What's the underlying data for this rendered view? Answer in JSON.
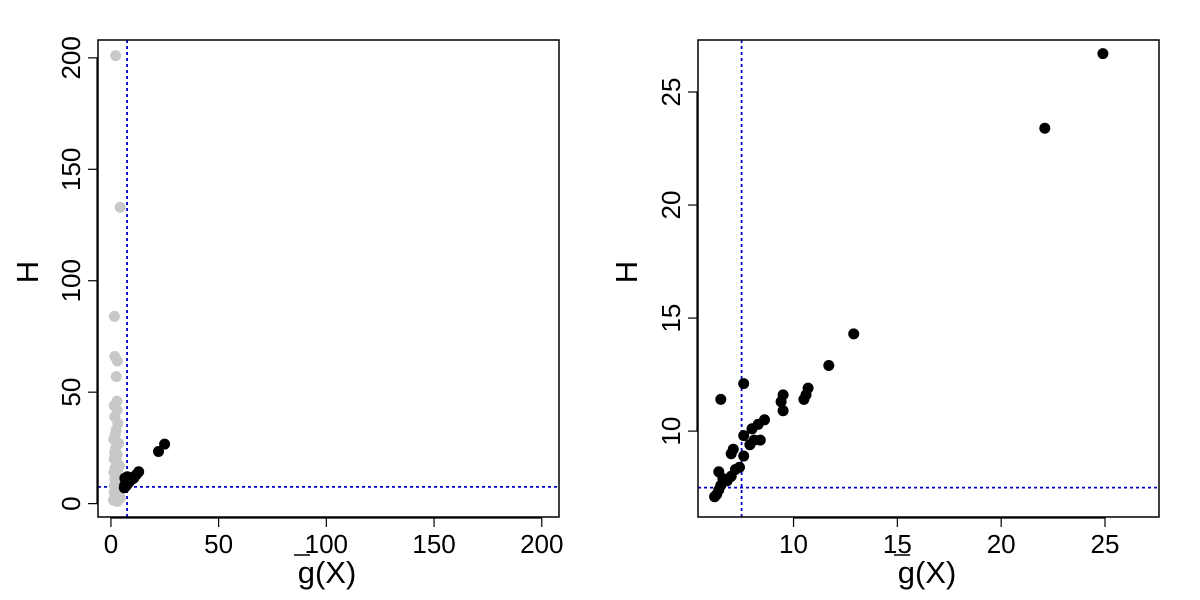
{
  "chart_data": [
    {
      "type": "scatter",
      "xlabel": "g(X)",
      "ylabel": "H",
      "xlim": [
        -6,
        208
      ],
      "ylim": [
        -6,
        208
      ],
      "xticks": [
        0,
        50,
        100,
        150,
        200
      ],
      "yticks": [
        0,
        50,
        100,
        150,
        200
      ],
      "reference_lines": {
        "x": 7.5,
        "y": 7.5,
        "color": "#0000cc",
        "style": "dotted"
      },
      "series": [
        {
          "color": "#c8c8c8",
          "points": [
            {
              "x": 2.2,
              "y": 201
            },
            {
              "x": 4.3,
              "y": 133
            },
            {
              "x": 1.6,
              "y": 84
            },
            {
              "x": 1.8,
              "y": 66
            },
            {
              "x": 3.0,
              "y": 64
            },
            {
              "x": 2.5,
              "y": 57
            },
            {
              "x": 2.8,
              "y": 46
            },
            {
              "x": 1.5,
              "y": 44
            },
            {
              "x": 2.9,
              "y": 42
            },
            {
              "x": 1.8,
              "y": 39
            },
            {
              "x": 3.2,
              "y": 36
            },
            {
              "x": 2.4,
              "y": 33
            },
            {
              "x": 2.1,
              "y": 31
            },
            {
              "x": 1.3,
              "y": 29
            },
            {
              "x": 3.6,
              "y": 27
            },
            {
              "x": 2.2,
              "y": 25
            },
            {
              "x": 1.7,
              "y": 23
            },
            {
              "x": 2.9,
              "y": 22
            },
            {
              "x": 1.5,
              "y": 20
            },
            {
              "x": 2.6,
              "y": 19
            },
            {
              "x": 3.9,
              "y": 17
            },
            {
              "x": 1.9,
              "y": 16
            },
            {
              "x": 3.1,
              "y": 15
            },
            {
              "x": 1.4,
              "y": 14
            },
            {
              "x": 2.4,
              "y": 13
            },
            {
              "x": 3.5,
              "y": 12
            },
            {
              "x": 1.8,
              "y": 11
            },
            {
              "x": 2.9,
              "y": 10
            },
            {
              "x": 4.2,
              "y": 9
            },
            {
              "x": 1.6,
              "y": 8
            },
            {
              "x": 2.6,
              "y": 7
            },
            {
              "x": 3.3,
              "y": 6
            },
            {
              "x": 1.5,
              "y": 5
            },
            {
              "x": 2.3,
              "y": 4
            },
            {
              "x": 3.6,
              "y": 3.5
            },
            {
              "x": 1.9,
              "y": 3
            },
            {
              "x": 2.7,
              "y": 2
            },
            {
              "x": 4.4,
              "y": 2.5
            },
            {
              "x": 1.2,
              "y": 1.5
            },
            {
              "x": 3.0,
              "y": 1
            }
          ]
        },
        {
          "color": "#000000",
          "points": [
            {
              "x": 6.2,
              "y": 7.1
            },
            {
              "x": 6.3,
              "y": 7.2
            },
            {
              "x": 6.4,
              "y": 7.4
            },
            {
              "x": 6.5,
              "y": 7.6
            },
            {
              "x": 6.6,
              "y": 7.9
            },
            {
              "x": 6.8,
              "y": 7.8
            },
            {
              "x": 7.0,
              "y": 8.0
            },
            {
              "x": 6.4,
              "y": 8.2
            },
            {
              "x": 7.2,
              "y": 8.3
            },
            {
              "x": 7.4,
              "y": 8.4
            },
            {
              "x": 7.6,
              "y": 8.9
            },
            {
              "x": 7.0,
              "y": 9.0
            },
            {
              "x": 7.1,
              "y": 9.2
            },
            {
              "x": 7.9,
              "y": 9.4
            },
            {
              "x": 8.1,
              "y": 9.6
            },
            {
              "x": 8.4,
              "y": 9.6
            },
            {
              "x": 7.6,
              "y": 9.8
            },
            {
              "x": 8.0,
              "y": 10.1
            },
            {
              "x": 8.3,
              "y": 10.3
            },
            {
              "x": 8.6,
              "y": 10.5
            },
            {
              "x": 9.5,
              "y": 10.9
            },
            {
              "x": 9.4,
              "y": 11.3
            },
            {
              "x": 9.5,
              "y": 11.6
            },
            {
              "x": 10.5,
              "y": 11.4
            },
            {
              "x": 10.6,
              "y": 11.6
            },
            {
              "x": 10.7,
              "y": 11.9
            },
            {
              "x": 6.5,
              "y": 11.4
            },
            {
              "x": 7.6,
              "y": 12.1
            },
            {
              "x": 11.7,
              "y": 12.9
            },
            {
              "x": 12.9,
              "y": 14.3
            },
            {
              "x": 22.1,
              "y": 23.4
            },
            {
              "x": 24.9,
              "y": 26.7
            }
          ]
        }
      ]
    },
    {
      "type": "scatter",
      "xlabel": "g(X)",
      "ylabel": "H",
      "xlim": [
        5.4,
        27.6
      ],
      "ylim": [
        6.2,
        27.3
      ],
      "xticks": [
        10,
        15,
        20,
        25
      ],
      "yticks": [
        10,
        15,
        20,
        25
      ],
      "reference_lines": {
        "x": 7.5,
        "y": 7.5,
        "color": "#0000cc",
        "style": "dotted"
      },
      "series": [
        {
          "color": "#000000",
          "points": [
            {
              "x": 6.2,
              "y": 7.1
            },
            {
              "x": 6.3,
              "y": 7.2
            },
            {
              "x": 6.4,
              "y": 7.4
            },
            {
              "x": 6.5,
              "y": 7.6
            },
            {
              "x": 6.6,
              "y": 7.9
            },
            {
              "x": 6.8,
              "y": 7.8
            },
            {
              "x": 7.0,
              "y": 8.0
            },
            {
              "x": 6.4,
              "y": 8.2
            },
            {
              "x": 7.2,
              "y": 8.3
            },
            {
              "x": 7.4,
              "y": 8.4
            },
            {
              "x": 7.6,
              "y": 8.9
            },
            {
              "x": 7.0,
              "y": 9.0
            },
            {
              "x": 7.1,
              "y": 9.2
            },
            {
              "x": 7.9,
              "y": 9.4
            },
            {
              "x": 8.1,
              "y": 9.6
            },
            {
              "x": 8.4,
              "y": 9.6
            },
            {
              "x": 7.6,
              "y": 9.8
            },
            {
              "x": 8.0,
              "y": 10.1
            },
            {
              "x": 8.3,
              "y": 10.3
            },
            {
              "x": 8.6,
              "y": 10.5
            },
            {
              "x": 9.5,
              "y": 10.9
            },
            {
              "x": 9.4,
              "y": 11.3
            },
            {
              "x": 9.5,
              "y": 11.6
            },
            {
              "x": 10.5,
              "y": 11.4
            },
            {
              "x": 10.6,
              "y": 11.6
            },
            {
              "x": 10.7,
              "y": 11.9
            },
            {
              "x": 6.5,
              "y": 11.4
            },
            {
              "x": 7.6,
              "y": 12.1
            },
            {
              "x": 11.7,
              "y": 12.9
            },
            {
              "x": 12.9,
              "y": 14.3
            },
            {
              "x": 22.1,
              "y": 23.4
            },
            {
              "x": 24.9,
              "y": 26.7
            }
          ]
        }
      ]
    }
  ]
}
